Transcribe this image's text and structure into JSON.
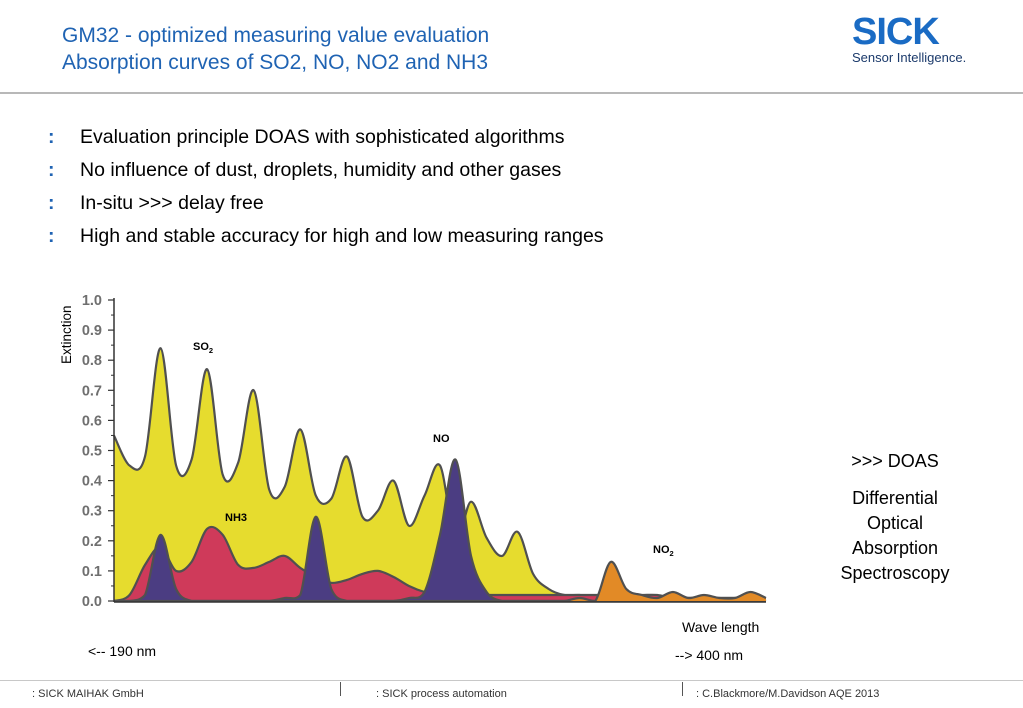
{
  "header": {
    "title_line1": "GM32 - optimized measuring value evaluation",
    "title_line2": "Absorption curves of SO2, NO, NO2 and NH3"
  },
  "logo": {
    "word": "SICK",
    "tagline": "Sensor Intelligence."
  },
  "bullets": [
    {
      "marker": ":",
      "text": "Evaluation principle DOAS with sophisticated algorithms"
    },
    {
      "marker": ":",
      "text": "No influence of dust, droplets, humidity and other gases"
    },
    {
      "marker": ":",
      "text": "In-situ >>> delay free"
    },
    {
      "marker": ":",
      "text": "High and stable accuracy for high and low measuring ranges"
    }
  ],
  "side_text": {
    "doas": ">>>  DOAS",
    "line1": "Differential",
    "line2": "Optical",
    "line3": "Absorption",
    "line4": "Spectroscopy"
  },
  "axis_notes": {
    "xlabel": "Wave length",
    "left_note": "<-- 190 nm",
    "right_note": "--> 400 nm"
  },
  "footer": {
    "left": ": SICK MAIHAK GmbH",
    "middle": ": SICK  process automation",
    "right": ": C.Blackmore/M.Davidson AQE 2013"
  },
  "colors": {
    "so2": "#e6dc2e",
    "no": "#4b3d82",
    "nh3": "#cf3a5a",
    "no2": "#e28a26",
    "title": "#1f63b3",
    "outline": "#505050"
  },
  "chart_data": {
    "type": "area",
    "ylabel": "Extinction",
    "xlabel": "Wave length",
    "x_range_note": [
      "190 nm",
      "400 nm"
    ],
    "ylim": [
      0.0,
      1.0
    ],
    "yticks": [
      "0.0",
      "0.1",
      "0.2",
      "0.3",
      "0.4",
      "0.5",
      "0.6",
      "0.7",
      "0.8",
      "0.9",
      "1.0"
    ],
    "x": [
      190,
      195,
      200,
      205,
      210,
      215,
      220,
      225,
      230,
      235,
      240,
      245,
      250,
      255,
      260,
      265,
      270,
      275,
      280,
      285,
      290,
      295,
      300,
      305,
      310,
      315,
      320,
      325,
      330,
      335,
      340,
      345,
      350,
      355,
      360,
      365,
      370,
      375,
      380,
      385,
      390,
      395,
      400
    ],
    "series": [
      {
        "name": "SO2",
        "label": "SO",
        "label_sub": "2",
        "color": "#e6dc2e",
        "values": [
          0.55,
          0.45,
          0.48,
          0.84,
          0.45,
          0.47,
          0.77,
          0.42,
          0.46,
          0.7,
          0.37,
          0.38,
          0.57,
          0.35,
          0.34,
          0.48,
          0.28,
          0.3,
          0.4,
          0.25,
          0.35,
          0.45,
          0.2,
          0.33,
          0.21,
          0.15,
          0.23,
          0.09,
          0.04,
          0.02,
          0.02,
          0.01,
          0.01,
          0.01,
          0.01,
          0.01,
          0.01,
          0.01,
          0.01,
          0.01,
          0.01,
          0.01,
          0.01
        ]
      },
      {
        "name": "NO",
        "label": "NO",
        "label_sub": "",
        "color": "#4b3d82",
        "values": [
          0.0,
          0.0,
          0.02,
          0.22,
          0.04,
          0.0,
          0.0,
          0.0,
          0.0,
          0.0,
          0.0,
          0.01,
          0.02,
          0.28,
          0.04,
          0.0,
          0.0,
          0.0,
          0.0,
          0.01,
          0.03,
          0.22,
          0.47,
          0.15,
          0.03,
          0.0,
          0.0,
          0.0,
          0.0,
          0.0,
          0.0,
          0.0,
          0.0,
          0.0,
          0.0,
          0.0,
          0.0,
          0.0,
          0.0,
          0.0,
          0.0,
          0.0,
          0.0
        ]
      },
      {
        "name": "NH3",
        "label": "NH3",
        "label_sub": "",
        "color": "#cf3a5a",
        "values": [
          0.0,
          0.02,
          0.12,
          0.18,
          0.1,
          0.13,
          0.24,
          0.22,
          0.12,
          0.11,
          0.13,
          0.15,
          0.11,
          0.08,
          0.06,
          0.07,
          0.09,
          0.1,
          0.08,
          0.05,
          0.03,
          0.02,
          0.03,
          0.02,
          0.02,
          0.02,
          0.02,
          0.02,
          0.02,
          0.02,
          0.02,
          0.02,
          0.02,
          0.02,
          0.02,
          0.02,
          0.01,
          0.01,
          0.01,
          0.01,
          0.01,
          0.01,
          0.0
        ]
      },
      {
        "name": "NO2",
        "label": "NO",
        "label_sub": "2",
        "color": "#e28a26",
        "values": [
          0.0,
          0.0,
          0.0,
          0.0,
          0.0,
          0.0,
          0.0,
          0.0,
          0.0,
          0.0,
          0.0,
          0.0,
          0.0,
          0.0,
          0.0,
          0.0,
          0.0,
          0.0,
          0.0,
          0.0,
          0.0,
          0.0,
          0.0,
          0.0,
          0.0,
          0.0,
          0.0,
          0.0,
          0.0,
          0.0,
          0.01,
          0.0,
          0.13,
          0.04,
          0.02,
          0.01,
          0.03,
          0.01,
          0.02,
          0.01,
          0.01,
          0.03,
          0.01
        ]
      }
    ]
  }
}
